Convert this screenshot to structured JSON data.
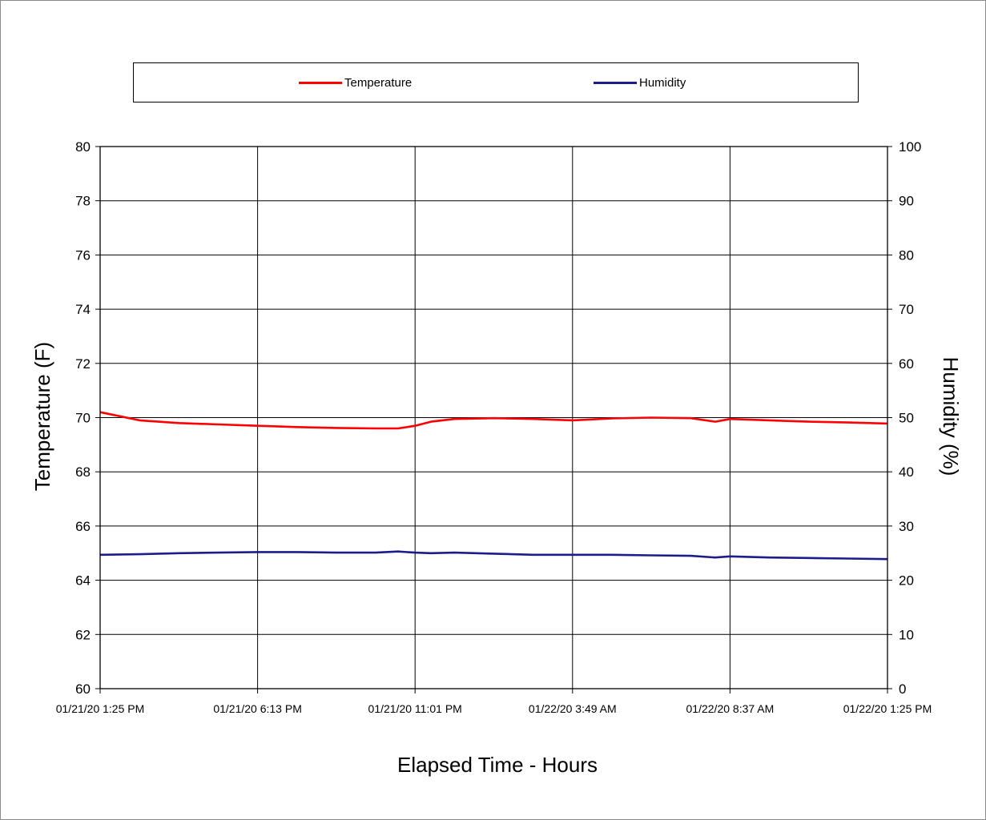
{
  "chart_data": {
    "type": "line",
    "xlabel": "Elapsed Time - Hours",
    "ylabel": "Temperature (F)",
    "y2label": "Humidity (%)",
    "x_ticks": [
      "01/21/20 1:25 PM",
      "01/21/20 6:13 PM",
      "01/21/20 11:01 PM",
      "01/22/20 3:49 AM",
      "01/22/20 8:37 AM",
      "01/22/20 1:25 PM"
    ],
    "ylim": [
      60,
      80
    ],
    "y_ticks": [
      "60",
      "62",
      "64",
      "66",
      "68",
      "70",
      "72",
      "74",
      "76",
      "78",
      "80"
    ],
    "y2lim": [
      0,
      100
    ],
    "y2_ticks": [
      "0",
      "10",
      "20",
      "30",
      "40",
      "50",
      "60",
      "70",
      "80",
      "90",
      "100"
    ],
    "grid": true,
    "legend_position": "top",
    "series": [
      {
        "name": "Temperature",
        "axis": "left",
        "color": "#ff0000",
        "x": [
          "01/21/20 1:25 PM",
          "01/21/20 2:37 PM",
          "01/21/20 3:49 PM",
          "01/21/20 5:01 PM",
          "01/21/20 6:13 PM",
          "01/21/20 7:25 PM",
          "01/21/20 8:37 PM",
          "01/21/20 9:49 PM",
          "01/21/20 10:30 PM",
          "01/21/20 11:01 PM",
          "01/21/20 11:30 PM",
          "01/22/20 12:13 AM",
          "01/22/20 1:25 AM",
          "01/22/20 2:37 AM",
          "01/22/20 3:49 AM",
          "01/22/20 5:01 AM",
          "01/22/20 6:13 AM",
          "01/22/20 7:25 AM",
          "01/22/20 8:10 AM",
          "01/22/20 8:37 AM",
          "01/22/20 9:49 AM",
          "01/22/20 11:01 AM",
          "01/22/20 12:13 PM",
          "01/22/20 1:25 PM"
        ],
        "values": [
          70.2,
          69.9,
          69.8,
          69.75,
          69.7,
          69.65,
          69.62,
          69.6,
          69.6,
          69.7,
          69.85,
          69.95,
          69.98,
          69.95,
          69.9,
          69.97,
          70.0,
          69.98,
          69.85,
          69.95,
          69.9,
          69.85,
          69.82,
          69.78
        ]
      },
      {
        "name": "Humidity",
        "axis": "right",
        "color": "#1c1c8a",
        "x": [
          "01/21/20 1:25 PM",
          "01/21/20 2:37 PM",
          "01/21/20 3:49 PM",
          "01/21/20 5:01 PM",
          "01/21/20 6:13 PM",
          "01/21/20 7:25 PM",
          "01/21/20 8:37 PM",
          "01/21/20 9:49 PM",
          "01/21/20 10:30 PM",
          "01/21/20 11:01 PM",
          "01/21/20 11:30 PM",
          "01/22/20 12:13 AM",
          "01/22/20 1:25 AM",
          "01/22/20 2:37 AM",
          "01/22/20 3:49 AM",
          "01/22/20 5:01 AM",
          "01/22/20 6:13 AM",
          "01/22/20 7:25 AM",
          "01/22/20 8:10 AM",
          "01/22/20 8:37 AM",
          "01/22/20 9:49 AM",
          "01/22/20 11:01 AM",
          "01/22/20 12:13 PM",
          "01/22/20 1:25 PM"
        ],
        "values": [
          24.7,
          24.8,
          25.0,
          25.1,
          25.2,
          25.2,
          25.1,
          25.1,
          25.3,
          25.1,
          25.0,
          25.1,
          24.9,
          24.7,
          24.7,
          24.7,
          24.6,
          24.5,
          24.2,
          24.4,
          24.2,
          24.1,
          24.0,
          23.9
        ]
      }
    ]
  }
}
